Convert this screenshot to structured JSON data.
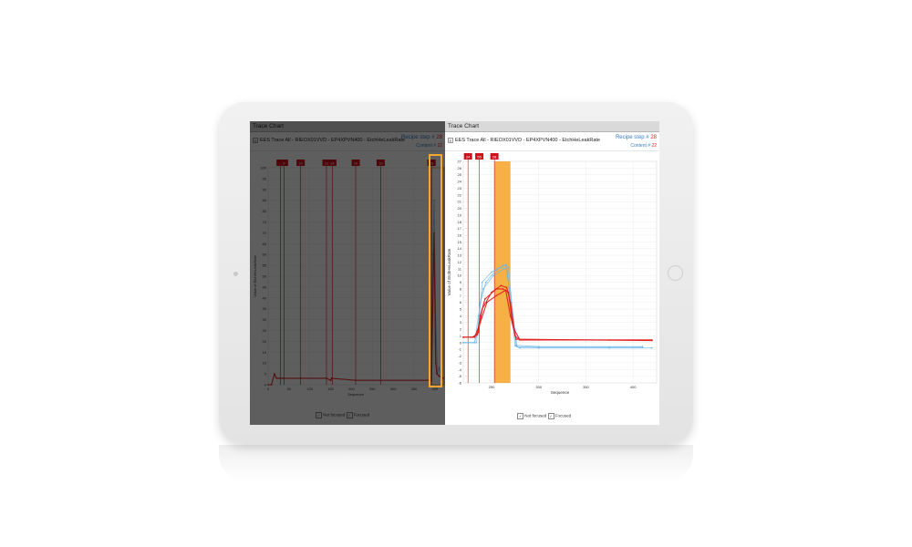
{
  "colors": {
    "focused": "#e02020",
    "not_focused": "#6bb7e6",
    "highlight": "#f5a732",
    "marker": "#d0101c",
    "accent": "#3a7cc2"
  },
  "left_panel": {
    "title": "Trace Chart",
    "toolbar_text": "EES Trace All - RIEOX01VVD - EP4XPVN400 - EtchHeLeakRate",
    "recipe_step_label": "Recipe step #",
    "recipe_step_value": "28",
    "content_label": "Content #",
    "content_value": "22",
    "legend_not_focused": "Not focused",
    "legend_focused": "Focused"
  },
  "right_panel": {
    "title": "Trace Chart",
    "toolbar_text": "EES Trace All - RIEOX01VVD - EP4XPVN400 - EtchHeLeakRate",
    "recipe_step_label": "Recipe step #",
    "recipe_step_value": "28",
    "content_label": "Content #",
    "content_value": "22",
    "legend_not_focused": "Not focused",
    "legend_focused": "Focused"
  },
  "chart_data": [
    {
      "type": "line",
      "title": "",
      "xlabel": "Sequence",
      "ylabel": "Value of EtchHeLeakRate",
      "xlim": [
        0,
        420
      ],
      "ylim": [
        0,
        100
      ],
      "x_ticks": [
        0,
        50,
        100,
        150,
        200,
        250,
        300,
        350,
        400
      ],
      "y_ticks": [
        0,
        5,
        10,
        15,
        20,
        25,
        30,
        35,
        40,
        45,
        50,
        55,
        60,
        65,
        70,
        75,
        80,
        85,
        90,
        95,
        100
      ],
      "step_markers": [
        {
          "label": "8",
          "x": 30
        },
        {
          "label": "9",
          "x": 38
        },
        {
          "label": "10",
          "x": 78
        },
        {
          "label": "13",
          "x": 140
        },
        {
          "label": "14",
          "x": 154
        },
        {
          "label": "16",
          "x": 210
        },
        {
          "label": "19",
          "x": 270
        },
        {
          "label": "28",
          "x": 392
        }
      ],
      "series": [
        {
          "role": "focused",
          "x": [
            0,
            8,
            15,
            20,
            25,
            30,
            35,
            38,
            78,
            140,
            150,
            152,
            210,
            392,
            398,
            402,
            405,
            410,
            420
          ],
          "y": [
            0,
            0,
            5,
            3,
            3,
            3,
            3,
            3,
            3,
            3,
            2,
            3,
            2,
            2,
            70,
            10,
            5,
            4,
            3
          ]
        },
        {
          "role": "not_focused",
          "x": [
            392,
            395,
            398,
            402,
            406,
            410,
            415,
            420
          ],
          "y": [
            3,
            60,
            85,
            30,
            5,
            8,
            4,
            3
          ]
        }
      ],
      "highlight_box": {
        "x_start": 392,
        "x_end": 420
      }
    },
    {
      "type": "line",
      "title": "",
      "xlabel": "Sequence",
      "ylabel": "Value of EtchHeLeakRate",
      "xlim": [
        220,
        425
      ],
      "ylim": [
        -6,
        27
      ],
      "x_ticks": [
        250,
        300,
        350,
        400
      ],
      "y_ticks": [
        -6,
        -5,
        -4,
        -3,
        -2,
        -1,
        0,
        1,
        2,
        3,
        4,
        5,
        6,
        7,
        8,
        9,
        10,
        11,
        12,
        13,
        14,
        15,
        16,
        17,
        18,
        19,
        20,
        21,
        22,
        23,
        24,
        25,
        26,
        27
      ],
      "step_markers": [
        {
          "label": "24",
          "x": 225
        },
        {
          "label": "55",
          "x": 237
        },
        {
          "label": "28",
          "x": 253
        }
      ],
      "highlight_band": {
        "x_start": 253,
        "x_end": 270,
        "label": "28"
      },
      "series": [
        {
          "role": "focused",
          "x": [
            220,
            228,
            232,
            235,
            238,
            243,
            255,
            262,
            268,
            272,
            275,
            280,
            300,
            340,
            375,
            420
          ],
          "y": [
            0.8,
            0.8,
            0.9,
            1.2,
            4,
            6.5,
            8,
            8,
            7.5,
            3,
            1,
            0.4,
            0.4,
            0.4,
            0.4,
            0.4
          ]
        },
        {
          "role": "focused",
          "x": [
            220,
            230,
            236,
            240,
            250,
            260,
            266,
            270,
            274,
            280,
            420
          ],
          "y": [
            0.8,
            0.8,
            1.5,
            5,
            7.5,
            8.5,
            8.2,
            6,
            2,
            0.4,
            0.4
          ]
        },
        {
          "role": "focused",
          "x": [
            220,
            232,
            238,
            245,
            255,
            265,
            270,
            276,
            420
          ],
          "y": [
            0.8,
            0.8,
            3,
            6,
            7,
            7.8,
            4,
            0.5,
            0.3
          ]
        },
        {
          "role": "not_focused",
          "x": [
            220,
            232,
            236,
            240,
            250,
            262,
            266,
            270,
            275,
            280,
            300,
            375,
            420
          ],
          "y": [
            0,
            0,
            2,
            9,
            10.5,
            11.5,
            11.5,
            6,
            -0.5,
            -0.8,
            -0.8,
            -0.8,
            -0.8
          ]
        },
        {
          "role": "not_focused",
          "x": [
            220,
            232,
            236,
            241,
            252,
            263,
            268,
            272,
            277,
            300,
            375,
            410
          ],
          "y": [
            0,
            0,
            4,
            8,
            10,
            11,
            11.2,
            5,
            -0.6,
            -0.7,
            -0.7,
            -0.7
          ]
        },
        {
          "role": "not_focused",
          "x": [
            220,
            234,
            238,
            244,
            255,
            265,
            270,
            276,
            300,
            410
          ],
          "y": [
            0,
            0,
            6,
            9,
            10.8,
            11.6,
            7,
            -0.4,
            -0.6,
            -0.6
          ]
        }
      ]
    }
  ]
}
